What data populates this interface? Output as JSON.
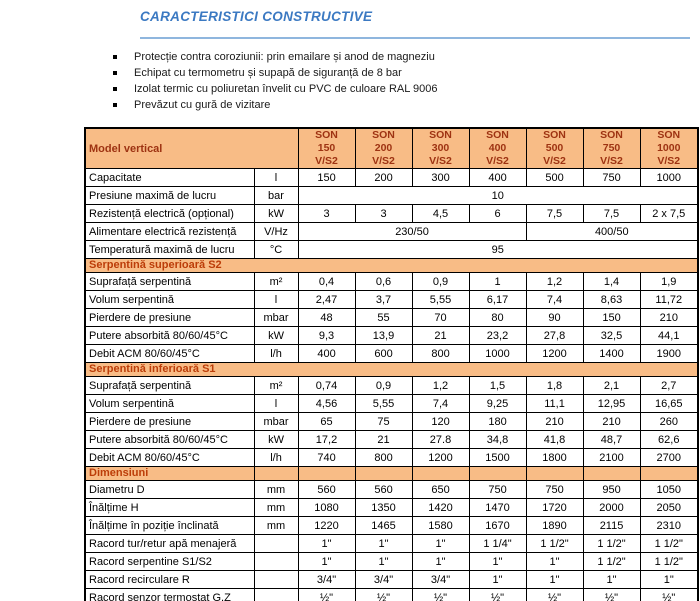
{
  "title": "CARACTERISTICI CONSTRUCTIVE",
  "bullets": [
    "Protecție contra coroziunii: prin emailare și anod de magneziu",
    "Echipat cu termometru și supapă de siguranță de 8 bar",
    "Izolat termic cu poliuretan învelit cu PVC de culoare RAL 9006",
    "Prevăzut cu gură de vizitare"
  ],
  "colors": {
    "title_blue": "#3b79c2",
    "rule_blue": "#8fb6de",
    "table_header_bg": "#f8bc86",
    "header_text": "#9e3312",
    "section_text": "#bc3d09"
  },
  "table": {
    "header": {
      "label": "Model vertical",
      "columns": [
        [
          "SON",
          "150",
          "V/S2"
        ],
        [
          "SON",
          "200",
          "V/S2"
        ],
        [
          "SON",
          "300",
          "V/S2"
        ],
        [
          "SON",
          "400",
          "V/S2"
        ],
        [
          "SON",
          "500",
          "V/S2"
        ],
        [
          "SON",
          "750",
          "V/S2"
        ],
        [
          "SON",
          "1000",
          "V/S2"
        ]
      ]
    },
    "rows": [
      {
        "type": "data",
        "label": "Capacitate",
        "unit": "l",
        "cells": [
          "150",
          "200",
          "300",
          "400",
          "500",
          "750",
          "1000"
        ]
      },
      {
        "type": "data",
        "label": "Presiune maximă de lucru",
        "unit": "bar",
        "cells": [
          {
            "t": "10",
            "cs": 7
          }
        ]
      },
      {
        "type": "data",
        "label": "Rezistență electrică (opțional)",
        "unit": "kW",
        "cells": [
          "3",
          "3",
          "4,5",
          "6",
          "7,5",
          "7,5",
          "2 x 7,5"
        ]
      },
      {
        "type": "data",
        "label": "Alimentare electrică rezistență",
        "unit": "V/Hz",
        "cells": [
          {
            "t": "230/50",
            "cs": 4
          },
          {
            "t": "400/50",
            "cs": 3
          }
        ]
      },
      {
        "type": "data",
        "label": "Temperatură maximă de lucru",
        "unit": "°C",
        "cells": [
          {
            "t": "95",
            "cs": 7
          }
        ]
      },
      {
        "type": "section",
        "label": "Serpentină superioară S2"
      },
      {
        "type": "data",
        "label": "Suprafață serpentină",
        "unit": "m²",
        "cells": [
          "0,4",
          "0,6",
          "0,9",
          "1",
          "1,2",
          "1,4",
          "1,9"
        ]
      },
      {
        "type": "data",
        "label": "Volum serpentină",
        "unit": "l",
        "cells": [
          "2,47",
          "3,7",
          "5,55",
          "6,17",
          "7,4",
          "8,63",
          "11,72"
        ]
      },
      {
        "type": "data",
        "label": "Pierdere de presiune",
        "unit": "mbar",
        "cells": [
          "48",
          "55",
          "70",
          "80",
          "90",
          "150",
          "210"
        ]
      },
      {
        "type": "data",
        "label": "Putere absorbită 80/60/45°C",
        "unit": "kW",
        "cells": [
          "9,3",
          "13,9",
          "21",
          "23,2",
          "27,8",
          "32,5",
          "44,1"
        ]
      },
      {
        "type": "data",
        "label": "Debit ACM 80/60/45°C",
        "unit": "l/h",
        "cells": [
          "400",
          "600",
          "800",
          "1000",
          "1200",
          "1400",
          "1900"
        ]
      },
      {
        "type": "section",
        "label": "Serpentină inferioară S1"
      },
      {
        "type": "data",
        "label": "Suprafață serpentină",
        "unit": "m²",
        "cells": [
          "0,74",
          "0,9",
          "1,2",
          "1,5",
          "1,8",
          "2,1",
          "2,7"
        ]
      },
      {
        "type": "data",
        "label": "Volum serpentină",
        "unit": "l",
        "cells": [
          "4,56",
          "5,55",
          "7,4",
          "9,25",
          "11,1",
          "12,95",
          "16,65"
        ]
      },
      {
        "type": "data",
        "label": "Pierdere de presiune",
        "unit": "mbar",
        "cells": [
          "65",
          "75",
          "120",
          "180",
          "210",
          "210",
          "260"
        ]
      },
      {
        "type": "data",
        "label": "Putere absorbită 80/60/45°C",
        "unit": "kW",
        "cells": [
          "17,2",
          "21",
          "27.8",
          "34,8",
          "41,8",
          "48,7",
          "62,6"
        ]
      },
      {
        "type": "data",
        "label": "Debit ACM 80/60/45°C",
        "unit": "l/h",
        "cells": [
          "740",
          "800",
          "1200",
          "1500",
          "1800",
          "2100",
          "2700"
        ]
      },
      {
        "type": "section",
        "divided": true,
        "label": "Dimensiuni"
      },
      {
        "type": "data",
        "label": "Diametru D",
        "unit": "mm",
        "cells": [
          "560",
          "560",
          "650",
          "750",
          "750",
          "950",
          "1050"
        ]
      },
      {
        "type": "data",
        "label": "Înălțime H",
        "unit": "mm",
        "cells": [
          "1080",
          "1350",
          "1420",
          "1470",
          "1720",
          "2000",
          "2050"
        ]
      },
      {
        "type": "data",
        "label": "Înălțime în poziție înclinată",
        "unit": "mm",
        "cells": [
          "1220",
          "1465",
          "1580",
          "1670",
          "1890",
          "2115",
          "2310"
        ]
      },
      {
        "type": "data",
        "label": "Racord tur/retur apă menajeră",
        "unit": "",
        "cells": [
          "1\"",
          "1\"",
          "1\"",
          "1 1/4\"",
          "1 1/2\"",
          "1 1/2\"",
          "1 1/2\""
        ]
      },
      {
        "type": "data",
        "label": "Racord serpentine S1/S2",
        "unit": "",
        "cells": [
          "1\"",
          "1\"",
          "1\"",
          "1\"",
          "1\"",
          "1 1/2\"",
          "1 1/2\""
        ]
      },
      {
        "type": "data",
        "label": "Racord recirculare R",
        "unit": "",
        "cells": [
          "3/4\"",
          "3/4\"",
          "3/4\"",
          "1\"",
          "1\"",
          "1\"",
          "1\""
        ]
      },
      {
        "type": "data",
        "label": "Racord senzor termostat G,Z",
        "unit": "",
        "cells": [
          "½\"",
          "½\"",
          "½\"",
          "½\"",
          "½\"",
          "½\"",
          "½\""
        ]
      }
    ]
  }
}
